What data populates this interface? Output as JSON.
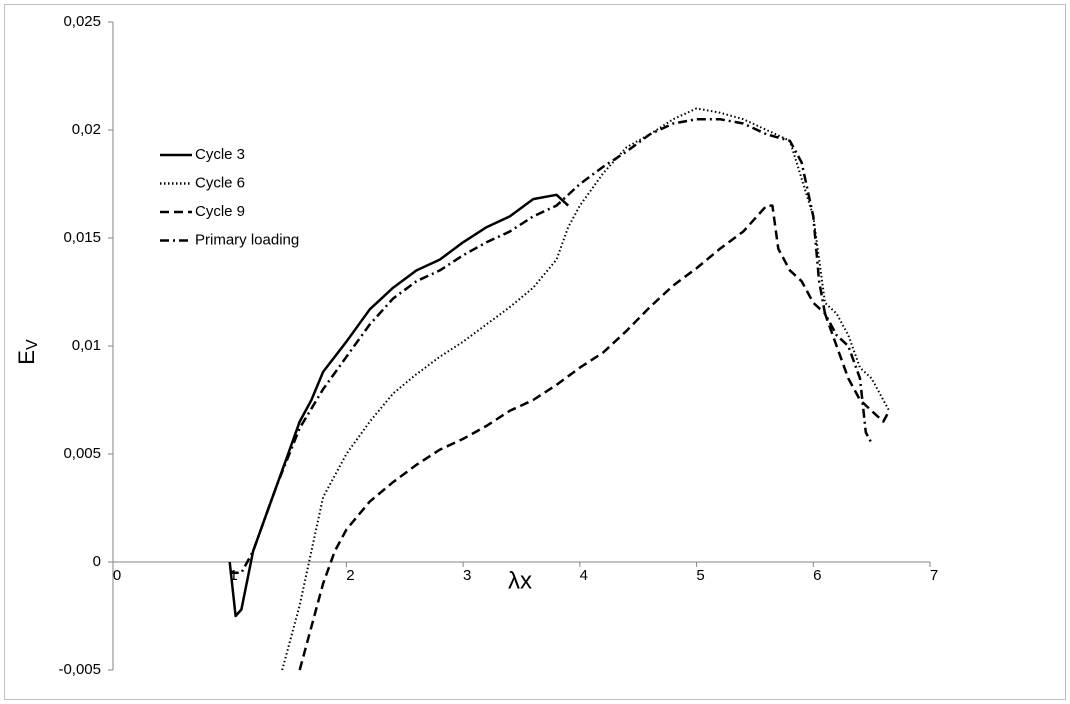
{
  "chart_data": {
    "type": "line",
    "xlabel": "λx",
    "ylabel": "E",
    "ylabel_sub": "V",
    "xlim": [
      0,
      7
    ],
    "xticks": [
      0,
      1,
      2,
      3,
      4,
      5,
      6,
      7
    ],
    "ylim": [
      -0.005,
      0.025
    ],
    "yticks": [
      {
        "value": -0.005,
        "label": "-0,005"
      },
      0,
      {
        "value": 0.005,
        "label": "0,005"
      },
      {
        "value": 0.01,
        "label": "0,01"
      },
      {
        "value": 0.015,
        "label": "0,015"
      },
      {
        "value": 0.02,
        "label": "0,02"
      },
      {
        "value": 0.025,
        "label": "0,025"
      }
    ],
    "grid": false,
    "legend": "upper left",
    "series": [
      {
        "name": "Cycle 3",
        "color": "#000000",
        "style": "solid",
        "x": [
          1.0,
          1.05,
          1.1,
          1.2,
          1.3,
          1.4,
          1.5,
          1.6,
          1.7,
          1.8,
          2.0,
          2.2,
          2.4,
          2.6,
          2.8,
          3.0,
          3.2,
          3.4,
          3.6,
          3.8,
          3.9
        ],
        "values": [
          0,
          -0.0025,
          -0.0022,
          0.0005,
          0.002,
          0.0035,
          0.005,
          0.0065,
          0.0075,
          0.0088,
          0.0102,
          0.0117,
          0.0127,
          0.0135,
          0.014,
          0.0148,
          0.0155,
          0.016,
          0.0168,
          0.017,
          0.0165
        ]
      },
      {
        "name": "Cycle 6",
        "color": "#000000",
        "style": "dotted",
        "x": [
          1.45,
          1.6,
          1.7,
          1.8,
          2.0,
          2.2,
          2.4,
          2.6,
          2.8,
          3.0,
          3.2,
          3.4,
          3.6,
          3.8,
          3.9,
          4.0,
          4.2,
          4.4,
          4.6,
          4.8,
          5.0,
          5.2,
          5.4,
          5.6,
          5.8,
          6.0,
          6.1,
          6.2,
          6.3,
          6.4,
          6.5,
          6.6,
          6.65
        ],
        "values": [
          -0.005,
          -0.002,
          0.0005,
          0.003,
          0.005,
          0.0065,
          0.0078,
          0.0087,
          0.0095,
          0.0102,
          0.011,
          0.0118,
          0.0127,
          0.014,
          0.0155,
          0.0165,
          0.018,
          0.0192,
          0.0198,
          0.0205,
          0.021,
          0.0208,
          0.0205,
          0.02,
          0.0195,
          0.016,
          0.012,
          0.0115,
          0.0105,
          0.009,
          0.0085,
          0.0075,
          0.007
        ]
      },
      {
        "name": "Cycle 9",
        "color": "#000000",
        "style": "dashed",
        "x": [
          1.6,
          1.7,
          1.8,
          1.9,
          2.0,
          2.2,
          2.4,
          2.6,
          2.8,
          3.0,
          3.2,
          3.4,
          3.6,
          3.8,
          4.0,
          4.2,
          4.4,
          4.6,
          4.8,
          5.0,
          5.2,
          5.4,
          5.6,
          5.65,
          5.7,
          5.8,
          5.9,
          6.0,
          6.1,
          6.2,
          6.3,
          6.4,
          6.5,
          6.6,
          6.65
        ],
        "values": [
          -0.005,
          -0.003,
          -0.001,
          0.0005,
          0.0015,
          0.0028,
          0.0037,
          0.0045,
          0.0052,
          0.0057,
          0.0063,
          0.007,
          0.0075,
          0.0082,
          0.009,
          0.0097,
          0.0107,
          0.0118,
          0.0128,
          0.0136,
          0.0145,
          0.0153,
          0.0165,
          0.0165,
          0.0145,
          0.0135,
          0.013,
          0.012,
          0.0115,
          0.01,
          0.0085,
          0.0075,
          0.007,
          0.0065,
          0.007
        ]
      },
      {
        "name": "Primary loading",
        "color": "#000000",
        "style": "dashdot",
        "x": [
          1.0,
          1.1,
          1.2,
          1.4,
          1.6,
          1.8,
          2.0,
          2.2,
          2.4,
          2.6,
          2.8,
          3.0,
          3.2,
          3.4,
          3.6,
          3.8,
          4.0,
          4.2,
          4.4,
          4.6,
          4.8,
          5.0,
          5.2,
          5.4,
          5.6,
          5.8,
          5.9,
          6.0,
          6.05,
          6.1,
          6.2,
          6.3,
          6.4,
          6.45,
          6.5
        ],
        "values": [
          -0.0005,
          -0.0005,
          0.0005,
          0.0035,
          0.0062,
          0.008,
          0.0095,
          0.011,
          0.0122,
          0.013,
          0.0135,
          0.0142,
          0.0148,
          0.0153,
          0.016,
          0.0165,
          0.0175,
          0.0183,
          0.019,
          0.0198,
          0.0203,
          0.0205,
          0.0205,
          0.0203,
          0.0198,
          0.0195,
          0.0185,
          0.016,
          0.013,
          0.0115,
          0.0105,
          0.01,
          0.0085,
          0.006,
          0.0055
        ]
      }
    ]
  }
}
